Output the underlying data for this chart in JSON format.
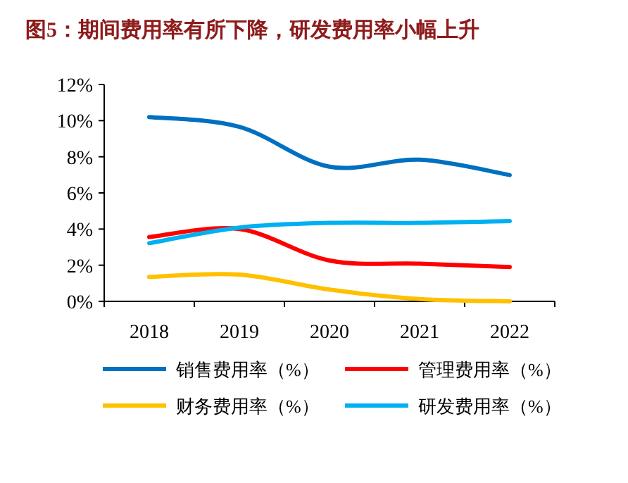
{
  "chart_data": {
    "type": "line",
    "title": "图5：期间费用率有所下降，研发费用率小幅上升",
    "categories": [
      "2018",
      "2019",
      "2020",
      "2021",
      "2022"
    ],
    "series": [
      {
        "name": "销售费用率（%）",
        "color": "#0070c0",
        "values": [
          10.2,
          9.66,
          7.45,
          7.84,
          6.99
        ]
      },
      {
        "name": "管理费用率（%）",
        "color": "#ff0000",
        "values": [
          3.56,
          4.0,
          2.26,
          2.08,
          1.9
        ]
      },
      {
        "name": "财务费用率（%）",
        "color": "#ffc000",
        "values": [
          1.35,
          1.48,
          0.65,
          0.13,
          0.0
        ]
      },
      {
        "name": "研发费用率（%）",
        "color": "#00b0f0",
        "values": [
          3.22,
          4.08,
          4.34,
          4.34,
          4.44
        ]
      }
    ],
    "ylim": [
      0,
      12
    ],
    "yticks": [
      {
        "value": 0,
        "label": "0%"
      },
      {
        "value": 2,
        "label": "2%"
      },
      {
        "value": 4,
        "label": "4%"
      },
      {
        "value": 6,
        "label": "6%"
      },
      {
        "value": 8,
        "label": "8%"
      },
      {
        "value": 10,
        "label": "10%"
      },
      {
        "value": 12,
        "label": "12%"
      }
    ],
    "grid": false,
    "legend": "bottom",
    "marker": "none",
    "line_style": "solid"
  }
}
